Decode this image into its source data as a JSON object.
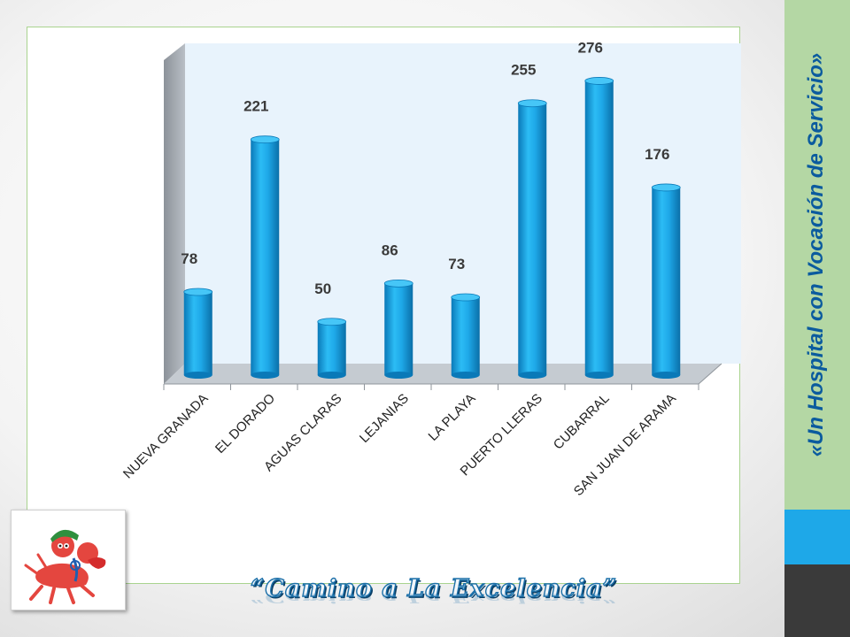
{
  "slide": {
    "slogan": "«Un Hospital con Vocación de Servicio»",
    "footer": "“Camino a La Excelencia”"
  },
  "colors": {
    "bar": "#1ea8e8",
    "bar_dark": "#0a79b8",
    "plot_back": "#e8f3fc",
    "side_green": "#b4d7a4",
    "side_blue": "#1ea8e8",
    "slogan": "#0b5b9e"
  },
  "logo": {
    "icon": "ant-mascot-icon"
  },
  "chart_data": {
    "type": "bar",
    "style": "3d-cylinder",
    "categories": [
      "NUEVA GRANADA",
      "EL DORADO",
      "AGUAS CLARAS",
      "LEJANIAS",
      "LA PLAYA",
      "PUERTO LLERAS",
      "CUBARRAL",
      "SAN JUAN DE ARAMA"
    ],
    "values": [
      78,
      221,
      50,
      86,
      73,
      255,
      276,
      176
    ],
    "title": "",
    "xlabel": "",
    "ylabel": "",
    "ylim": [
      0,
      300
    ],
    "grid": false,
    "legend": "none",
    "data_labels": true
  }
}
